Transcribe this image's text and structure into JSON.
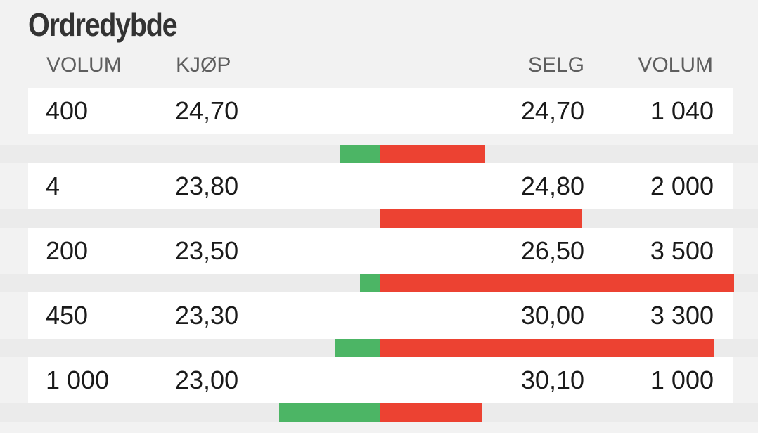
{
  "title": "Ordredybde",
  "headers": {
    "buy_volume": "VOLUM",
    "buy_price": "KJØP",
    "sell_price": "SELG",
    "sell_volume": "VOLUM"
  },
  "colors": {
    "buy_bar": "#4cb565",
    "sell_bar": "#ec4232",
    "row_bg": "#ffffff",
    "page_bg": "#f2f2f2"
  },
  "rows": [
    {
      "buy_volume": "400",
      "buy_price": "24,70",
      "sell_price": "24,70",
      "sell_volume": "1 040",
      "buy_qty": 400,
      "sell_qty": 1040
    },
    {
      "buy_volume": "4",
      "buy_price": "23,80",
      "sell_price": "24,80",
      "sell_volume": "2 000",
      "buy_qty": 4,
      "sell_qty": 2000
    },
    {
      "buy_volume": "200",
      "buy_price": "23,50",
      "sell_price": "26,50",
      "sell_volume": "3 500",
      "buy_qty": 200,
      "sell_qty": 3500
    },
    {
      "buy_volume": "450",
      "buy_price": "23,30",
      "sell_price": "30,00",
      "sell_volume": "3 300",
      "buy_qty": 450,
      "sell_qty": 3300
    },
    {
      "buy_volume": "1 000",
      "buy_price": "23,00",
      "sell_price": "30,10",
      "sell_volume": "1 000",
      "buy_qty": 1000,
      "sell_qty": 1000
    }
  ]
}
